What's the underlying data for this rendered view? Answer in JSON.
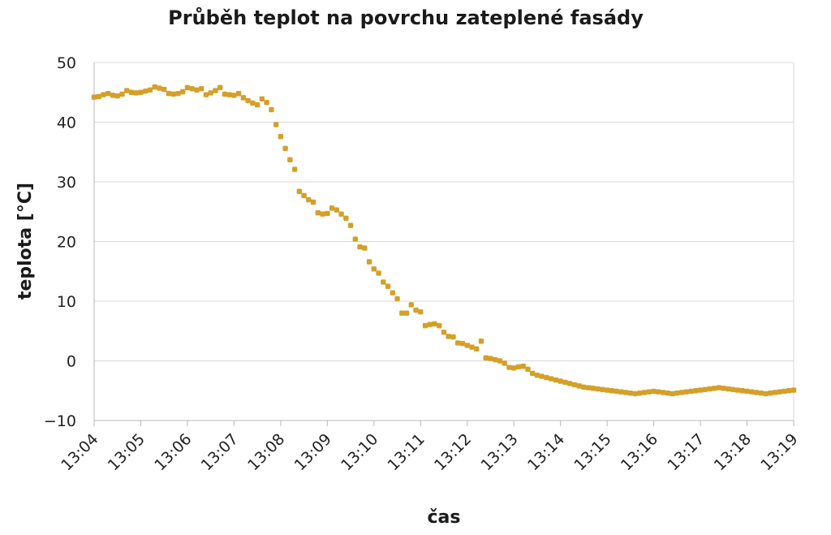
{
  "chart_data": {
    "type": "scatter",
    "title": "Průběh teplot na povrchu zateplené fasády",
    "xlabel": "čas",
    "ylabel": "teplota [°C]",
    "ylim": [
      -10,
      50
    ],
    "yticks": [
      "−10",
      "0",
      "10",
      "20",
      "30",
      "40",
      "50"
    ],
    "yticks_values": [
      -10,
      0,
      10,
      20,
      30,
      40,
      50
    ],
    "xticks": [
      "13:04",
      "13:05",
      "13:06",
      "13:07",
      "13:08",
      "13:09",
      "13:10",
      "13:11",
      "13:12",
      "13:13",
      "13:14",
      "13:15",
      "13:16",
      "13:17",
      "13:18",
      "13:19"
    ],
    "xlim": [
      "13:04",
      "13:19"
    ],
    "grid": "horizontal",
    "marker_color": "#D4A02A",
    "series": [
      {
        "x": [
          "13:04:00",
          "13:04:06",
          "13:04:12",
          "13:04:18",
          "13:04:24",
          "13:04:30",
          "13:04:36",
          "13:04:42",
          "13:04:48",
          "13:04:54",
          "13:05:00",
          "13:05:06",
          "13:05:12",
          "13:05:18",
          "13:05:24",
          "13:05:30",
          "13:05:36",
          "13:05:42",
          "13:05:48",
          "13:05:54",
          "13:06:00",
          "13:06:06",
          "13:06:12",
          "13:06:18",
          "13:06:24",
          "13:06:30",
          "13:06:36",
          "13:06:42",
          "13:06:48",
          "13:06:54",
          "13:07:00",
          "13:07:06",
          "13:07:12",
          "13:07:18",
          "13:07:24",
          "13:07:30",
          "13:07:36",
          "13:07:42",
          "13:07:48",
          "13:07:54",
          "13:08:00",
          "13:08:06",
          "13:08:12",
          "13:08:18",
          "13:08:24",
          "13:08:30",
          "13:08:36",
          "13:08:42",
          "13:08:48",
          "13:08:54",
          "13:09:00",
          "13:09:06",
          "13:09:12",
          "13:09:18",
          "13:09:24",
          "13:09:30",
          "13:09:36",
          "13:09:42",
          "13:09:48",
          "13:09:54",
          "13:10:00",
          "13:10:06",
          "13:10:12",
          "13:10:18",
          "13:10:24",
          "13:10:30",
          "13:10:36",
          "13:10:42",
          "13:10:48",
          "13:10:54",
          "13:11:00",
          "13:11:06",
          "13:11:12",
          "13:11:18",
          "13:11:24",
          "13:11:30",
          "13:11:36",
          "13:11:42",
          "13:11:48",
          "13:11:54",
          "13:12:00",
          "13:12:06",
          "13:12:12",
          "13:12:18",
          "13:12:24",
          "13:12:30",
          "13:12:36",
          "13:12:42",
          "13:12:48",
          "13:12:54",
          "13:13:00",
          "13:13:06",
          "13:13:12",
          "13:13:18",
          "13:13:24",
          "13:13:30",
          "13:13:36",
          "13:13:42",
          "13:13:48",
          "13:13:54",
          "13:14:00",
          "13:14:06",
          "13:14:12",
          "13:14:18",
          "13:14:24",
          "13:14:30",
          "13:14:36",
          "13:14:42",
          "13:14:48",
          "13:14:54",
          "13:15:00",
          "13:15:06",
          "13:15:12",
          "13:15:18",
          "13:15:24",
          "13:15:30",
          "13:15:36",
          "13:15:42",
          "13:15:48",
          "13:15:54",
          "13:16:00",
          "13:16:06",
          "13:16:12",
          "13:16:18",
          "13:16:24",
          "13:16:30",
          "13:16:36",
          "13:16:42",
          "13:16:48",
          "13:16:54",
          "13:17:00",
          "13:17:06",
          "13:17:12",
          "13:17:18",
          "13:17:24",
          "13:17:30",
          "13:17:36",
          "13:17:42",
          "13:17:48",
          "13:17:54",
          "13:18:00",
          "13:18:06",
          "13:18:12",
          "13:18:18",
          "13:18:24",
          "13:18:30",
          "13:18:36",
          "13:18:42",
          "13:18:48",
          "13:18:54",
          "13:19:00"
        ],
        "y": [
          44.2,
          44.3,
          44.6,
          44.8,
          44.5,
          44.4,
          44.7,
          45.3,
          45.0,
          44.9,
          45.0,
          45.2,
          45.4,
          45.9,
          45.7,
          45.5,
          44.8,
          44.7,
          44.8,
          45.1,
          45.8,
          45.6,
          45.4,
          45.6,
          44.6,
          44.9,
          45.3,
          45.8,
          44.7,
          44.6,
          44.5,
          44.8,
          44.1,
          43.6,
          43.2,
          42.9,
          43.9,
          43.3,
          42.1,
          39.6,
          37.6,
          35.6,
          33.7,
          32.1,
          28.4,
          27.7,
          27.0,
          26.6,
          24.8,
          24.6,
          24.7,
          25.6,
          25.3,
          24.6,
          23.9,
          22.7,
          20.4,
          19.1,
          18.9,
          16.6,
          15.4,
          14.7,
          13.2,
          12.5,
          11.4,
          10.4,
          8.0,
          8.0,
          9.4,
          8.5,
          8.2,
          5.9,
          6.1,
          6.2,
          5.9,
          4.8,
          4.1,
          4.0,
          3.0,
          2.9,
          2.6,
          2.3,
          2.0,
          3.3,
          0.5,
          0.4,
          0.2,
          0.0,
          -0.4,
          -1.1,
          -1.2,
          -1.0,
          -0.9,
          -1.4,
          -2.1,
          -2.4,
          -2.6,
          -2.8,
          -3.0,
          -3.2,
          -3.4,
          -3.6,
          -3.8,
          -4.0,
          -4.2,
          -4.4,
          -4.5,
          -4.6,
          -4.7,
          -4.8,
          -4.9,
          -5.0,
          -5.1,
          -5.2,
          -5.3,
          -5.4,
          -5.5,
          -5.4,
          -5.3,
          -5.2,
          -5.1,
          -5.2,
          -5.3,
          -5.4,
          -5.5,
          -5.4,
          -5.3,
          -5.2,
          -5.1,
          -5.0,
          -4.9,
          -4.8,
          -4.7,
          -4.6,
          -4.5,
          -4.6,
          -4.7,
          -4.8,
          -4.9,
          -5.0,
          -5.1,
          -5.2,
          -5.3,
          -5.4,
          -5.5,
          -5.4,
          -5.3,
          -5.2,
          -5.1,
          -5.0,
          -4.9
        ]
      }
    ]
  }
}
